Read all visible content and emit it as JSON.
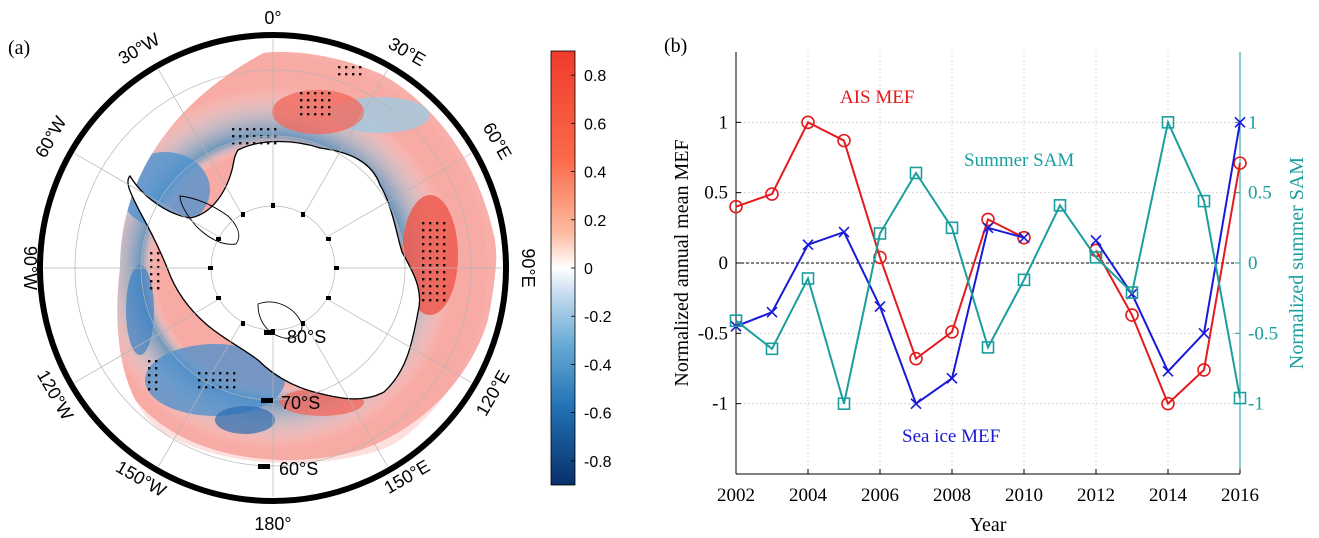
{
  "panel_a": {
    "label": "(a)",
    "longitude_labels": [
      "0°",
      "30°E",
      "60°E",
      "90°E",
      "120°E",
      "150°E",
      "180°",
      "150°W",
      "120°W",
      "90°W",
      "60°W",
      "30°W"
    ],
    "latitude_labels": [
      "80°S",
      "70°S",
      "60°S"
    ],
    "colorbar": {
      "ticks": [
        0.8,
        0.6,
        0.4,
        0.2,
        0,
        -0.2,
        -0.4,
        -0.6,
        -0.8
      ],
      "tick_labels": [
        "0.8",
        "0.6",
        "0.4",
        "0.2",
        "0",
        "-0.2",
        "-0.4",
        "-0.6",
        "-0.8"
      ],
      "range": [
        -0.9,
        0.9
      ],
      "colormap": [
        "#08306b",
        "#2171b5",
        "#6baed6",
        "#c6dbef",
        "#ffffff",
        "#fcbba1",
        "#fb6a4a",
        "#ef3b2c"
      ]
    },
    "colors": {
      "positive": "#ef3b2c",
      "negative": "#2171b5",
      "land": "#ffffff",
      "frame": "#000000"
    }
  },
  "chart_data": [
    {
      "type": "line",
      "label": "(b)",
      "xlabel": "Year",
      "ylabel": "Normalized annual mean MEF",
      "y2label": "Normalized summer SAM",
      "x": [
        2002,
        2003,
        2004,
        2005,
        2006,
        2007,
        2008,
        2009,
        2010,
        2011,
        2012,
        2013,
        2014,
        2015,
        2016
      ],
      "xlim": [
        2002,
        2016
      ],
      "ylim": [
        -1.5,
        1.5
      ],
      "y2lim": [
        -1.5,
        1.5
      ],
      "xticks": [
        "2002",
        "2004",
        "2006",
        "2008",
        "2010",
        "2012",
        "2014",
        "2016"
      ],
      "yticks": [
        "1",
        "0.5",
        "0",
        "-0.5",
        "-1"
      ],
      "y2ticks": [
        "1",
        "0.5",
        "0",
        "-0.5",
        "-1"
      ],
      "grid": true,
      "series": [
        {
          "name": "AIS MEF",
          "color": "#e41a1c",
          "marker": "circle",
          "values": [
            0.4,
            0.49,
            1.0,
            0.87,
            0.04,
            -0.68,
            -0.49,
            0.31,
            0.18,
            null,
            0.09,
            -0.37,
            -1.0,
            -0.76,
            0.71
          ]
        },
        {
          "name": "Sea ice MEF",
          "color": "#1a1ad6",
          "marker": "x",
          "values": [
            -0.45,
            -0.35,
            0.13,
            0.22,
            -0.31,
            -1.0,
            -0.82,
            0.25,
            0.18,
            null,
            0.16,
            -0.22,
            -0.77,
            -0.5,
            1.0
          ]
        },
        {
          "name": "Summer SAM",
          "color": "#1a9e9e",
          "marker": "square",
          "axis": "right",
          "values": [
            -0.41,
            -0.61,
            -0.11,
            -1.0,
            0.21,
            0.64,
            0.25,
            -0.6,
            -0.12,
            0.41,
            0.04,
            -0.21,
            1.0,
            0.44,
            -0.96
          ]
        }
      ]
    }
  ]
}
